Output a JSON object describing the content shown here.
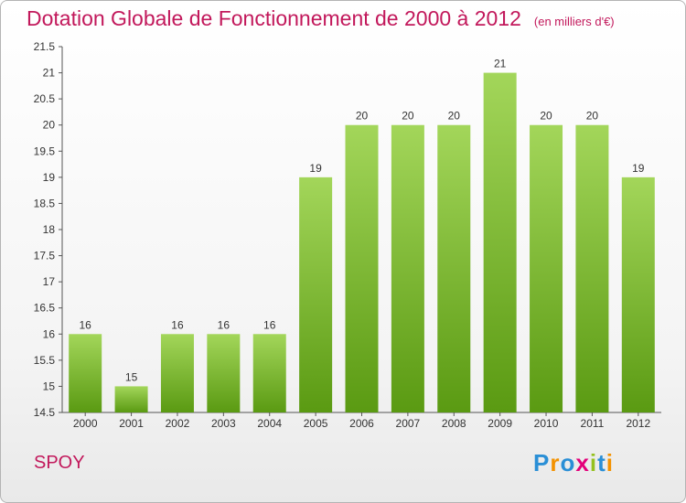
{
  "page": {
    "place": "SPOY",
    "logo_letters": [
      "P",
      "r",
      "o",
      "x",
      "i",
      "t",
      "i"
    ],
    "logo_colors": [
      "#2a8fd6",
      "#f39200",
      "#2a8fd6",
      "#e3007a",
      "#95c11f",
      "#2a8fd6",
      "#f39200"
    ]
  },
  "chart_data": {
    "type": "bar",
    "title": "Dotation Globale de Fonctionnement de 2000 à 2012",
    "unit_label": "(en milliers d'€)",
    "categories": [
      "2000",
      "2001",
      "2002",
      "2003",
      "2004",
      "2005",
      "2006",
      "2007",
      "2008",
      "2009",
      "2010",
      "2011",
      "2012"
    ],
    "values": [
      16,
      15,
      16,
      16,
      16,
      19,
      20,
      20,
      20,
      21,
      20,
      20,
      19
    ],
    "data_labels": [
      "16",
      "15",
      "16",
      "16",
      "16",
      "19",
      "20",
      "20",
      "20",
      "21",
      "20",
      "20",
      "19"
    ],
    "yticks": [
      "14.5",
      "15",
      "15.5",
      "16",
      "16.5",
      "17",
      "17.5",
      "18",
      "18.5",
      "19",
      "19.5",
      "20",
      "20.5",
      "21",
      "21.5"
    ],
    "ylim": [
      14.5,
      21.5
    ],
    "xlabel": "",
    "ylabel": "",
    "colors": {
      "bar_top": "#a3d65a",
      "bar_bottom": "#5a9a12",
      "title": "#c2185b",
      "axis": "#555555"
    }
  }
}
